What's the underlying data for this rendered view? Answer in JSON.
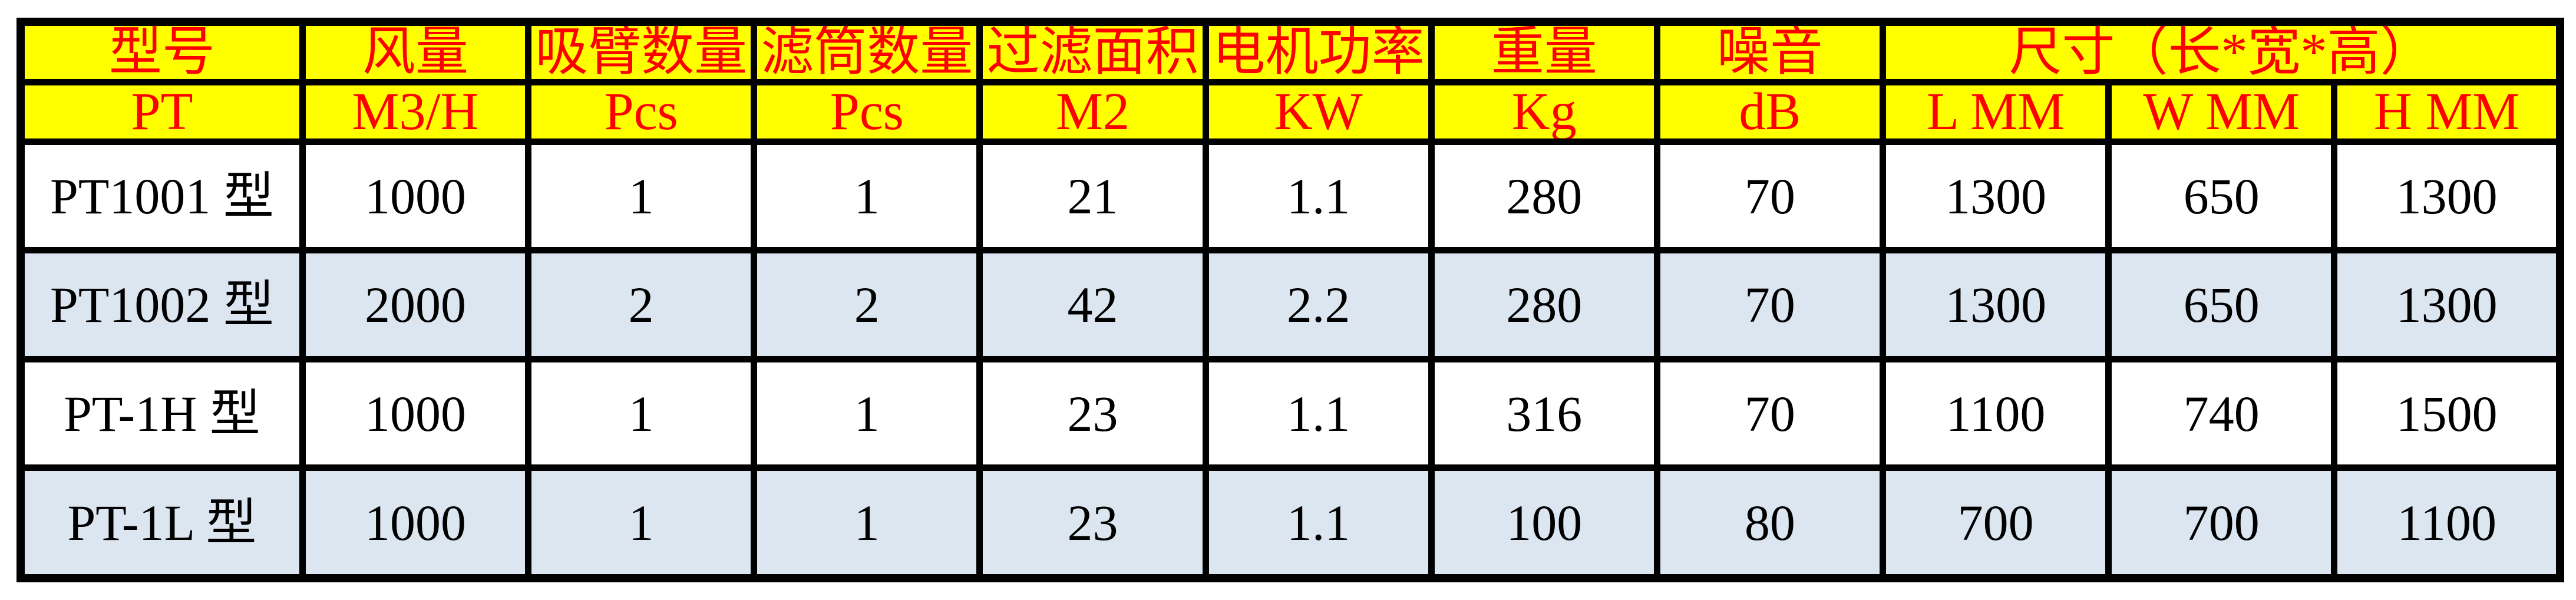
{
  "colors": {
    "header_background": "#FFFF00",
    "header_text": "#FF0000",
    "grid_border": "#000000",
    "row_even_background": "#FFFFFF",
    "row_odd_background": "#DCE6F1",
    "data_text": "#000000",
    "page_background": "#FFFFFF"
  },
  "table": {
    "header_row1": [
      {
        "label": "型号",
        "colspan": 1
      },
      {
        "label": "风量",
        "colspan": 1
      },
      {
        "label": "吸臂数量",
        "colspan": 1
      },
      {
        "label": "滤筒数量",
        "colspan": 1
      },
      {
        "label": "过滤面积",
        "colspan": 1
      },
      {
        "label": "电机功率",
        "colspan": 1
      },
      {
        "label": "重量",
        "colspan": 1
      },
      {
        "label": "噪音",
        "colspan": 1
      },
      {
        "label": "尺寸（长*宽*高）",
        "colspan": 3
      }
    ],
    "header_row2": [
      "PT",
      "M3/H",
      "Pcs",
      "Pcs",
      "M2",
      "KW",
      "Kg",
      "dB",
      "L MM",
      "W MM",
      "H MM"
    ],
    "rows": [
      [
        "PT1001 型",
        "1000",
        "1",
        "1",
        "21",
        "1.1",
        "280",
        "70",
        "1300",
        "650",
        "1300"
      ],
      [
        "PT1002 型",
        "2000",
        "2",
        "2",
        "42",
        "2.2",
        "280",
        "70",
        "1300",
        "650",
        "1300"
      ],
      [
        "PT-1H 型",
        "1000",
        "1",
        "1",
        "23",
        "1.1",
        "316",
        "70",
        "1100",
        "740",
        "1500"
      ],
      [
        "PT-1L 型",
        "1000",
        "1",
        "1",
        "23",
        "1.1",
        "100",
        "80",
        "700",
        "700",
        "1100"
      ]
    ]
  }
}
